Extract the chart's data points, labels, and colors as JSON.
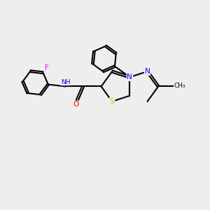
{
  "background_color": "#eeeeee",
  "bond_color": "#000000",
  "atom_colors": {
    "F": "#ff00ff",
    "N": "#0000ff",
    "O": "#ff0000",
    "S": "#cccc00",
    "C": "#000000",
    "H": "#808080"
  },
  "figsize": [
    3.0,
    3.0
  ],
  "dpi": 100
}
